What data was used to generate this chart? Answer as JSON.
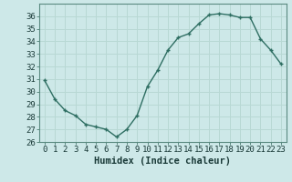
{
  "x": [
    0,
    1,
    2,
    3,
    4,
    5,
    6,
    7,
    8,
    9,
    10,
    11,
    12,
    13,
    14,
    15,
    16,
    17,
    18,
    19,
    20,
    21,
    22,
    23
  ],
  "y": [
    30.9,
    29.4,
    28.5,
    28.1,
    27.4,
    27.2,
    27.0,
    26.4,
    27.0,
    28.1,
    30.4,
    31.7,
    33.3,
    34.3,
    34.6,
    35.4,
    36.1,
    36.2,
    36.1,
    35.9,
    35.9,
    34.2,
    33.3,
    32.2
  ],
  "line_color": "#2e6e62",
  "marker": "+",
  "marker_size": 3.5,
  "marker_lw": 1.0,
  "bg_color": "#cde8e8",
  "grid_color": "#b8d8d4",
  "xlabel": "Humidex (Indice chaleur)",
  "ylim": [
    26,
    37
  ],
  "yticks": [
    26,
    27,
    28,
    29,
    30,
    31,
    32,
    33,
    34,
    35,
    36
  ],
  "xticks": [
    0,
    1,
    2,
    3,
    4,
    5,
    6,
    7,
    8,
    9,
    10,
    11,
    12,
    13,
    14,
    15,
    16,
    17,
    18,
    19,
    20,
    21,
    22,
    23
  ],
  "tick_label_fontsize": 6.5,
  "xlabel_fontsize": 7.5,
  "line_width": 1.0
}
